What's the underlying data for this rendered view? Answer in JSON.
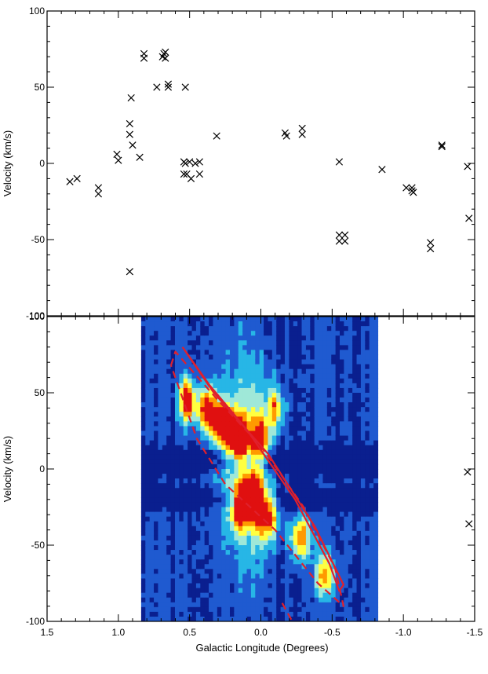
{
  "figure": {
    "xlabel": "Galactic Longitude (Degrees)"
  },
  "chart_data": [
    {
      "type": "scatter",
      "panel": "top",
      "title": "",
      "xlabel": "",
      "ylabel": "Velocity (km/s)",
      "xlim": [
        1.5,
        -1.5
      ],
      "ylim": [
        -100,
        100
      ],
      "x_reversed": true,
      "xticks": [
        "1.5",
        "1.0",
        "0.5",
        "0.0",
        "-0.5",
        "-1.0",
        "-1.5"
      ],
      "yticks": [
        "100",
        "50",
        "0",
        "-50",
        "-100"
      ],
      "marker": "x",
      "points": [
        {
          "x": 1.34,
          "y": -12
        },
        {
          "x": 1.29,
          "y": -10
        },
        {
          "x": 1.14,
          "y": -16
        },
        {
          "x": 1.14,
          "y": -20
        },
        {
          "x": 1.01,
          "y": 6
        },
        {
          "x": 1.0,
          "y": 2
        },
        {
          "x": 0.91,
          "y": 43
        },
        {
          "x": 0.92,
          "y": 26
        },
        {
          "x": 0.92,
          "y": 19
        },
        {
          "x": 0.9,
          "y": 12
        },
        {
          "x": 0.92,
          "y": -71
        },
        {
          "x": 0.85,
          "y": 4
        },
        {
          "x": 0.82,
          "y": 72
        },
        {
          "x": 0.82,
          "y": 69
        },
        {
          "x": 0.73,
          "y": 50
        },
        {
          "x": 0.68,
          "y": 72
        },
        {
          "x": 0.67,
          "y": 73
        },
        {
          "x": 0.69,
          "y": 70
        },
        {
          "x": 0.67,
          "y": 69
        },
        {
          "x": 0.65,
          "y": 52
        },
        {
          "x": 0.65,
          "y": 50
        },
        {
          "x": 0.53,
          "y": 50
        },
        {
          "x": 0.54,
          "y": 1
        },
        {
          "x": 0.53,
          "y": 0
        },
        {
          "x": 0.54,
          "y": -7
        },
        {
          "x": 0.52,
          "y": -7
        },
        {
          "x": 0.5,
          "y": 1
        },
        {
          "x": 0.49,
          "y": -10
        },
        {
          "x": 0.46,
          "y": 0
        },
        {
          "x": 0.43,
          "y": 1
        },
        {
          "x": 0.43,
          "y": -7
        },
        {
          "x": 0.31,
          "y": 18
        },
        {
          "x": -0.17,
          "y": 20
        },
        {
          "x": -0.18,
          "y": 18
        },
        {
          "x": -0.29,
          "y": 23
        },
        {
          "x": -0.29,
          "y": 19
        },
        {
          "x": -0.55,
          "y": 1
        },
        {
          "x": -0.55,
          "y": -47
        },
        {
          "x": -0.59,
          "y": -47
        },
        {
          "x": -0.55,
          "y": -51
        },
        {
          "x": -0.59,
          "y": -51
        },
        {
          "x": -0.85,
          "y": -4
        },
        {
          "x": -1.02,
          "y": -16
        },
        {
          "x": -1.06,
          "y": -16
        },
        {
          "x": -1.06,
          "y": -18
        },
        {
          "x": -1.07,
          "y": -19
        },
        {
          "x": -1.19,
          "y": -52
        },
        {
          "x": -1.19,
          "y": -56
        },
        {
          "x": -1.27,
          "y": 12
        },
        {
          "x": -1.27,
          "y": 11
        },
        {
          "x": -1.45,
          "y": -2
        },
        {
          "x": -1.46,
          "y": -36
        }
      ]
    },
    {
      "type": "heatmap",
      "panel": "bottom",
      "title": "",
      "xlabel": "Galactic Longitude (Degrees)",
      "ylabel": "Velocity (km/s)",
      "xlim": [
        1.5,
        -1.5
      ],
      "ylim": [
        -100,
        100
      ],
      "x_reversed": true,
      "xticks": [
        "1.5",
        "1.0",
        "0.5",
        "0.0",
        "-0.5",
        "-1.0",
        "-1.5"
      ],
      "yticks": [
        "100",
        "50",
        "0",
        "-50",
        "-100"
      ],
      "image_extent": {
        "x": [
          0.84,
          -0.82
        ],
        "y": [
          -100,
          100
        ]
      },
      "colormap": [
        "#0a1f8f",
        "#1f5ad0",
        "#27b6e6",
        "#9fe8d8",
        "#ffff40",
        "#ff9a00",
        "#e01010"
      ],
      "blobs": [
        {
          "x": 0.52,
          "y": 45,
          "sx": 0.035,
          "sy": 10,
          "v": 1.0
        },
        {
          "x": 0.27,
          "y": 30,
          "sx": 0.05,
          "sy": 8,
          "v": 1.05
        },
        {
          "x": 0.38,
          "y": 40,
          "sx": 0.05,
          "sy": 10,
          "v": 0.8
        },
        {
          "x": 0.16,
          "y": 20,
          "sx": 0.05,
          "sy": 10,
          "v": 0.75
        },
        {
          "x": 0.0,
          "y": 20,
          "sx": 0.04,
          "sy": 10,
          "v": 0.7
        },
        {
          "x": -0.1,
          "y": 40,
          "sx": 0.04,
          "sy": 10,
          "v": 0.6
        },
        {
          "x": 0.05,
          "y": -20,
          "sx": 0.04,
          "sy": 10,
          "v": 0.85
        },
        {
          "x": 0.15,
          "y": -25,
          "sx": 0.04,
          "sy": 10,
          "v": 0.8
        },
        {
          "x": -0.05,
          "y": -30,
          "sx": 0.05,
          "sy": 12,
          "v": 0.75
        },
        {
          "x": -0.28,
          "y": -45,
          "sx": 0.05,
          "sy": 10,
          "v": 0.7
        },
        {
          "x": -0.45,
          "y": -70,
          "sx": 0.05,
          "sy": 10,
          "v": 0.6
        },
        {
          "x": 0.05,
          "y": 0,
          "sx": 0.08,
          "sy": 50,
          "v": 0.35
        },
        {
          "x": 0.2,
          "y": 10,
          "sx": 0.12,
          "sy": 40,
          "v": 0.3
        }
      ],
      "bands": [
        {
          "y": 5,
          "sy": 6,
          "v": 0.22
        },
        {
          "y": -20,
          "sy": 5,
          "v": 0.18
        }
      ],
      "ellipse_overlays": [
        {
          "name": "",
          "style": "solid",
          "color": "#e0202c",
          "path": [
            [
              0.55,
              80
            ],
            [
              0.36,
              55
            ],
            [
              0.1,
              26
            ],
            [
              -0.24,
              -20
            ],
            [
              -0.48,
              -62
            ],
            [
              -0.55,
              -80
            ],
            [
              -0.58,
              -76
            ],
            [
              -0.38,
              -38
            ],
            [
              -0.05,
              10
            ],
            [
              0.33,
              50
            ],
            [
              0.55,
              80
            ]
          ]
        },
        {
          "name": "",
          "style": "dashed",
          "color": "#e0202c",
          "path": [
            [
              0.63,
              68
            ],
            [
              0.6,
              77
            ],
            [
              0.3,
              45
            ],
            [
              0.0,
              15
            ],
            [
              -0.3,
              -25
            ],
            [
              -0.52,
              -65
            ],
            [
              -0.58,
              -90
            ],
            [
              -0.4,
              -75
            ],
            [
              -0.1,
              -40
            ],
            [
              0.25,
              -10
            ],
            [
              0.45,
              20
            ],
            [
              0.63,
              68
            ]
          ]
        },
        {
          "name": "",
          "style": "dashed",
          "color": "#e0202c",
          "path": [
            [
              -0.15,
              -88
            ],
            [
              -0.22,
              -100
            ]
          ]
        }
      ],
      "series_markers": [
        {
          "x": -1.45,
          "y": -2
        },
        {
          "x": -1.46,
          "y": -36
        }
      ]
    }
  ]
}
